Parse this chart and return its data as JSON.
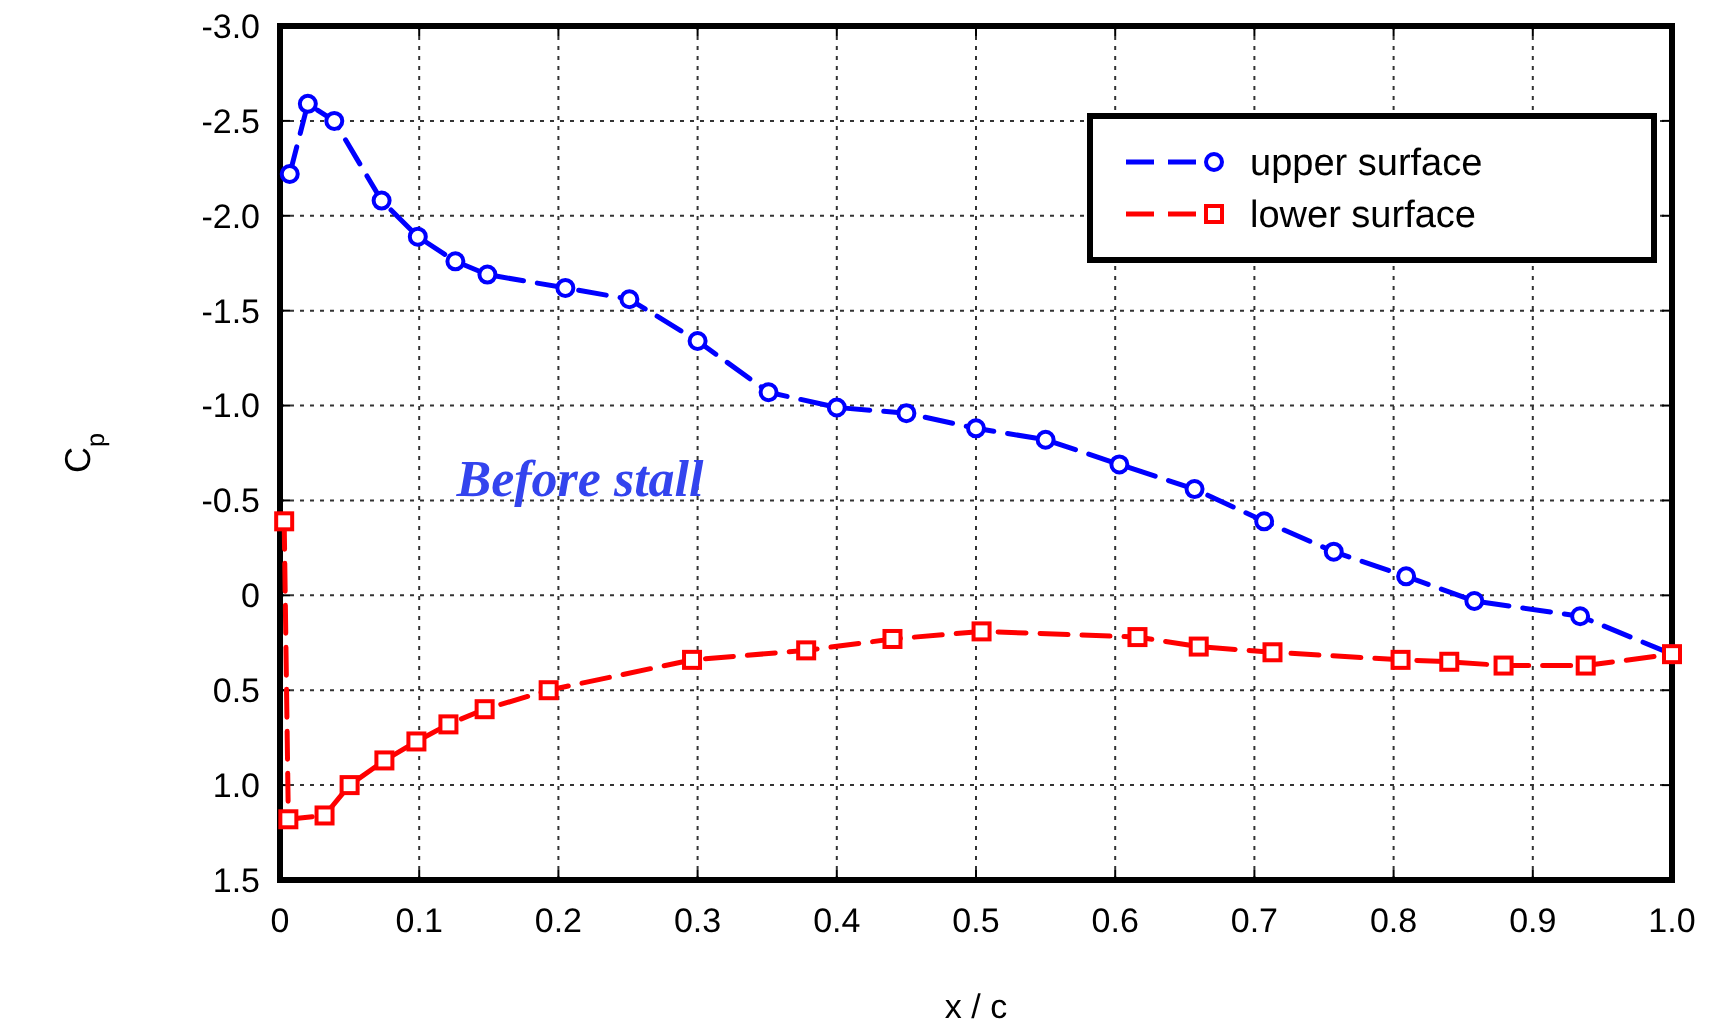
{
  "chart_data": {
    "type": "line",
    "xlabel": "x / c",
    "ylabel": "C$_{p}$",
    "annotations": [
      "Before stall"
    ],
    "xlim": [
      0,
      1
    ],
    "xticks": [
      0,
      0.1,
      0.2,
      0.3,
      0.4,
      0.5,
      0.6,
      0.7,
      0.8,
      0.9,
      {
        "value": 1,
        "label": "1.0"
      }
    ],
    "ylim": [
      1.5,
      -3
    ],
    "yticks": [
      {
        "value": -3,
        "label": "-3.0"
      },
      -2.5,
      {
        "value": -2,
        "label": "-2.0"
      },
      -1.5,
      {
        "value": -1,
        "label": "-1.0"
      },
      -0.5,
      0,
      0.5,
      {
        "value": 1,
        "label": "1.0"
      },
      1.5
    ],
    "grid": true,
    "legend": "top right",
    "line_style": "dashed",
    "series": [
      {
        "name": "upper surface",
        "color": "#0000ff",
        "marker": "circle",
        "x": [
          0.007,
          0.02,
          0.039,
          0.073,
          0.099,
          0.126,
          0.149,
          0.205,
          0.251,
          0.3,
          0.351,
          0.4,
          0.45,
          0.5,
          0.55,
          0.603,
          0.657,
          0.707,
          0.757,
          0.809,
          0.858,
          0.934,
          1.0
        ],
        "values": [
          -2.22,
          -2.59,
          -2.5,
          -2.08,
          -1.89,
          -1.76,
          -1.69,
          -1.62,
          -1.56,
          -1.34,
          -1.07,
          -0.99,
          -0.96,
          -0.88,
          -0.82,
          -0.69,
          -0.56,
          -0.39,
          -0.23,
          -0.1,
          0.03,
          0.11,
          0.31
        ]
      },
      {
        "name": "lower surface",
        "color": "#ff0000",
        "marker": "square",
        "x": [
          0.003,
          0.006,
          0.032,
          0.05,
          0.075,
          0.098,
          0.121,
          0.147,
          0.193,
          0.296,
          0.378,
          0.44,
          0.504,
          0.616,
          0.66,
          0.713,
          0.805,
          0.84,
          0.879,
          0.938,
          1.0
        ],
        "values": [
          -0.39,
          1.18,
          1.16,
          1.0,
          0.87,
          0.77,
          0.68,
          0.6,
          0.5,
          0.34,
          0.29,
          0.23,
          0.19,
          0.22,
          0.27,
          0.3,
          0.34,
          0.35,
          0.37,
          0.37,
          0.31
        ]
      }
    ]
  }
}
